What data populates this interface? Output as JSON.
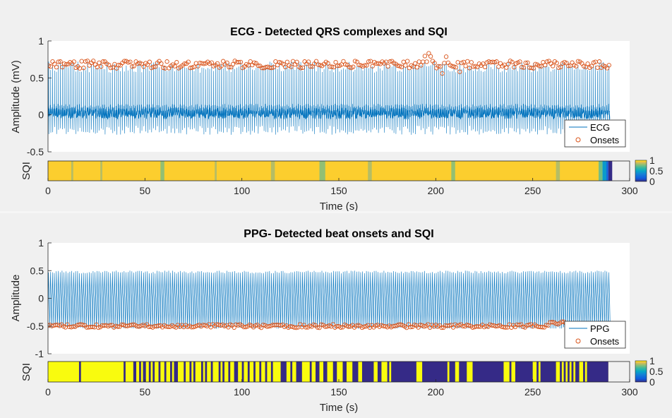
{
  "chart_data": [
    {
      "type": "line",
      "panel": "ecg",
      "title": "ECG - Detected QRS complexes and SQI",
      "xlabel": "Time (s)",
      "ylabel": "Amplitude (mV)",
      "sqi_label": "SQI",
      "xlim": [
        0,
        300
      ],
      "ylim": [
        -0.5,
        1
      ],
      "xticks": [
        0,
        50,
        100,
        150,
        200,
        250,
        300
      ],
      "yticks": [
        -0.5,
        0,
        0.5,
        1
      ],
      "ytick_labels": [
        "-0.5",
        "0",
        "0.5",
        "1"
      ],
      "legend_position": "bottom-right",
      "series": [
        {
          "name": "ECG",
          "kind": "line",
          "color": "#0072bd",
          "beat_period_s": 1.0,
          "baseline_mV": 0.0,
          "peak_mV": 0.72,
          "trough_mV": -0.15
        },
        {
          "name": "Onsets",
          "kind": "markers",
          "color": "#d95319",
          "typical_value_mV": 0.68,
          "min_value_mV": 0.5,
          "max_value_mV": 0.86
        }
      ],
      "sqi": {
        "colorbar_ticks": [
          1,
          0.5,
          0
        ],
        "colorbar_tick_labels": [
          "1",
          "0.5",
          "0"
        ],
        "default": 0.95,
        "segments": [
          {
            "start": 12,
            "end": 13,
            "value": 0.85
          },
          {
            "start": 27,
            "end": 28,
            "value": 0.85
          },
          {
            "start": 58,
            "end": 60,
            "value": 0.8
          },
          {
            "start": 86,
            "end": 87,
            "value": 0.85
          },
          {
            "start": 115,
            "end": 117,
            "value": 0.85
          },
          {
            "start": 140,
            "end": 143,
            "value": 0.8
          },
          {
            "start": 165,
            "end": 167,
            "value": 0.85
          },
          {
            "start": 208,
            "end": 210,
            "value": 0.8
          },
          {
            "start": 262,
            "end": 264,
            "value": 0.85
          },
          {
            "start": 284,
            "end": 286,
            "value": 0.75
          },
          {
            "start": 286,
            "end": 288,
            "value": 0.45
          },
          {
            "start": 288,
            "end": 289,
            "value": 0.2
          },
          {
            "start": 289,
            "end": 291,
            "value": 0.0
          }
        ]
      }
    },
    {
      "type": "line",
      "panel": "ppg",
      "title": "PPG- Detected beat onsets and SQI",
      "xlabel": "Time (s)",
      "ylabel": "Amplitude",
      "sqi_label": "SQI",
      "xlim": [
        0,
        300
      ],
      "ylim": [
        -1,
        1
      ],
      "xticks": [
        0,
        50,
        100,
        150,
        200,
        250,
        300
      ],
      "yticks": [
        -1,
        -0.5,
        0,
        0.5,
        1
      ],
      "ytick_labels": [
        "-1",
        "-0.5",
        "0",
        "0.5",
        "1"
      ],
      "legend_position": "bottom-right",
      "series": [
        {
          "name": "PPG",
          "kind": "line",
          "color": "#0072bd",
          "beat_period_s": 1.0,
          "peak": 0.5,
          "trough": -0.52
        },
        {
          "name": "Onsets",
          "kind": "markers",
          "color": "#d95319",
          "typical_value": -0.5
        }
      ],
      "sqi": {
        "colorbar_ticks": [
          1,
          0.5,
          0
        ],
        "colorbar_tick_labels": [
          "1",
          "0.5",
          "0"
        ],
        "default": 1,
        "low_segments": [
          [
            16,
            17
          ],
          [
            39,
            40
          ],
          [
            44,
            45.5
          ],
          [
            47,
            48
          ],
          [
            49,
            50.5
          ],
          [
            52,
            53
          ],
          [
            54,
            55
          ],
          [
            57,
            58
          ],
          [
            60,
            61
          ],
          [
            63,
            64
          ],
          [
            65,
            67
          ],
          [
            70,
            71
          ],
          [
            73,
            74
          ],
          [
            75,
            76
          ],
          [
            79,
            80
          ],
          [
            81,
            82
          ],
          [
            84,
            85
          ],
          [
            88,
            89
          ],
          [
            90,
            91
          ],
          [
            93,
            94
          ],
          [
            96,
            98
          ],
          [
            100,
            101
          ],
          [
            103,
            104
          ],
          [
            106,
            107
          ],
          [
            109,
            110
          ],
          [
            112,
            113
          ],
          [
            115,
            116
          ],
          [
            120,
            123
          ],
          [
            125,
            126
          ],
          [
            128,
            131
          ],
          [
            135,
            136
          ],
          [
            138,
            140
          ],
          [
            142,
            144
          ],
          [
            147,
            149
          ],
          [
            152,
            154
          ],
          [
            157,
            160
          ],
          [
            162,
            168
          ],
          [
            170,
            172
          ],
          [
            175,
            190
          ],
          [
            193,
            210
          ],
          [
            212,
            216
          ],
          [
            219,
            235
          ],
          [
            238,
            239
          ],
          [
            241,
            250
          ],
          [
            252,
            262
          ],
          [
            264,
            265
          ],
          [
            266,
            267
          ],
          [
            268,
            269
          ],
          [
            270,
            271
          ],
          [
            272,
            274
          ],
          [
            276,
            277
          ],
          [
            278,
            289
          ]
        ],
        "high_islands": [
          [
            176,
            177
          ],
          [
            206,
            207
          ],
          [
            253,
            254
          ]
        ]
      }
    }
  ]
}
